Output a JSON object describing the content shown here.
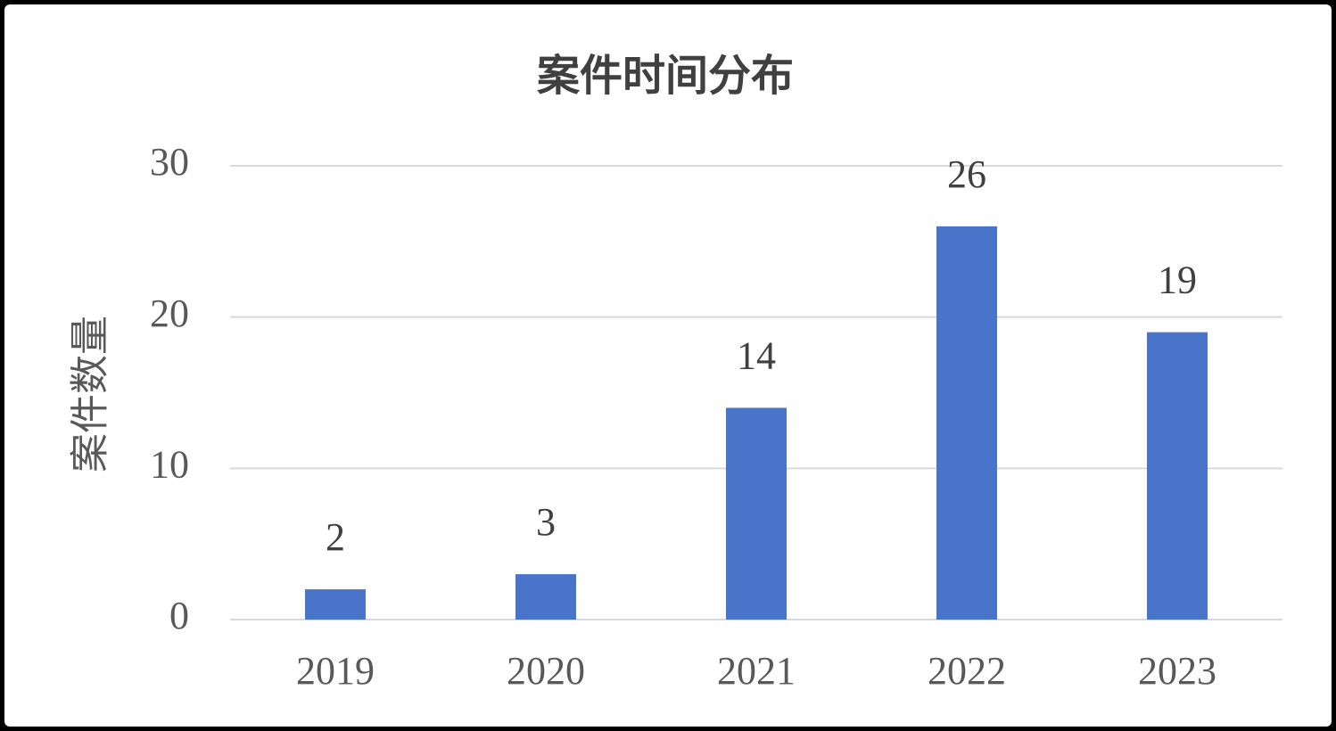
{
  "chart_data": {
    "type": "bar",
    "title": "案件时间分布",
    "ylabel": "案件数量",
    "categories": [
      "2019",
      "2020",
      "2021",
      "2022",
      "2023"
    ],
    "values": [
      2,
      3,
      14,
      26,
      19
    ],
    "color": "#4a74c9",
    "ylim": [
      0,
      30
    ],
    "yticks": [
      0,
      10,
      20,
      30
    ],
    "grid": true
  }
}
